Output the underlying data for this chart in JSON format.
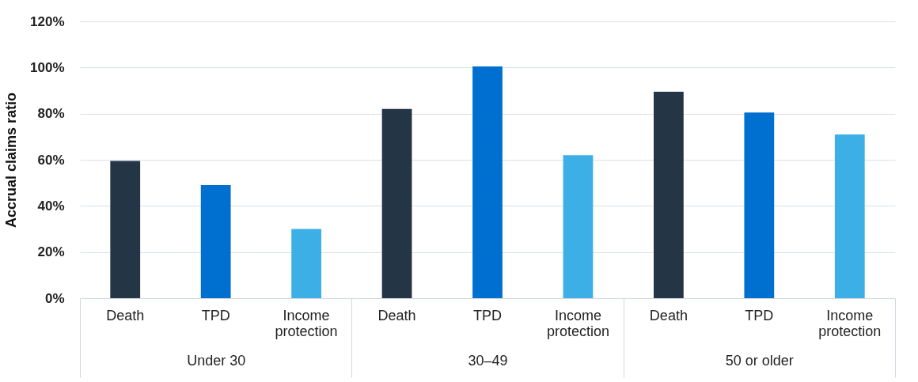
{
  "chart_data": {
    "type": "bar",
    "ylabel": "Accrual claims ratio",
    "categories": [
      "Under 30",
      "30–49",
      "50 or older"
    ],
    "series": [
      {
        "name": "Death",
        "color": "#243546",
        "values": [
          59.5,
          82,
          89.5
        ]
      },
      {
        "name": "TPD",
        "color": "#0070d0",
        "values": [
          49,
          100.5,
          80.5
        ]
      },
      {
        "name": "Income protection",
        "color": "#3cb0e6",
        "values": [
          30,
          62,
          71
        ]
      }
    ],
    "ylim": [
      0,
      120
    ],
    "yticks": [
      {
        "value": 0,
        "label": "0%"
      },
      {
        "value": 20,
        "label": "20%"
      },
      {
        "value": 40,
        "label": "40%"
      },
      {
        "value": 60,
        "label": "60%"
      },
      {
        "value": 80,
        "label": "80%"
      },
      {
        "value": 100,
        "label": "100%"
      },
      {
        "value": 120,
        "label": "120%"
      }
    ],
    "grid": true
  }
}
